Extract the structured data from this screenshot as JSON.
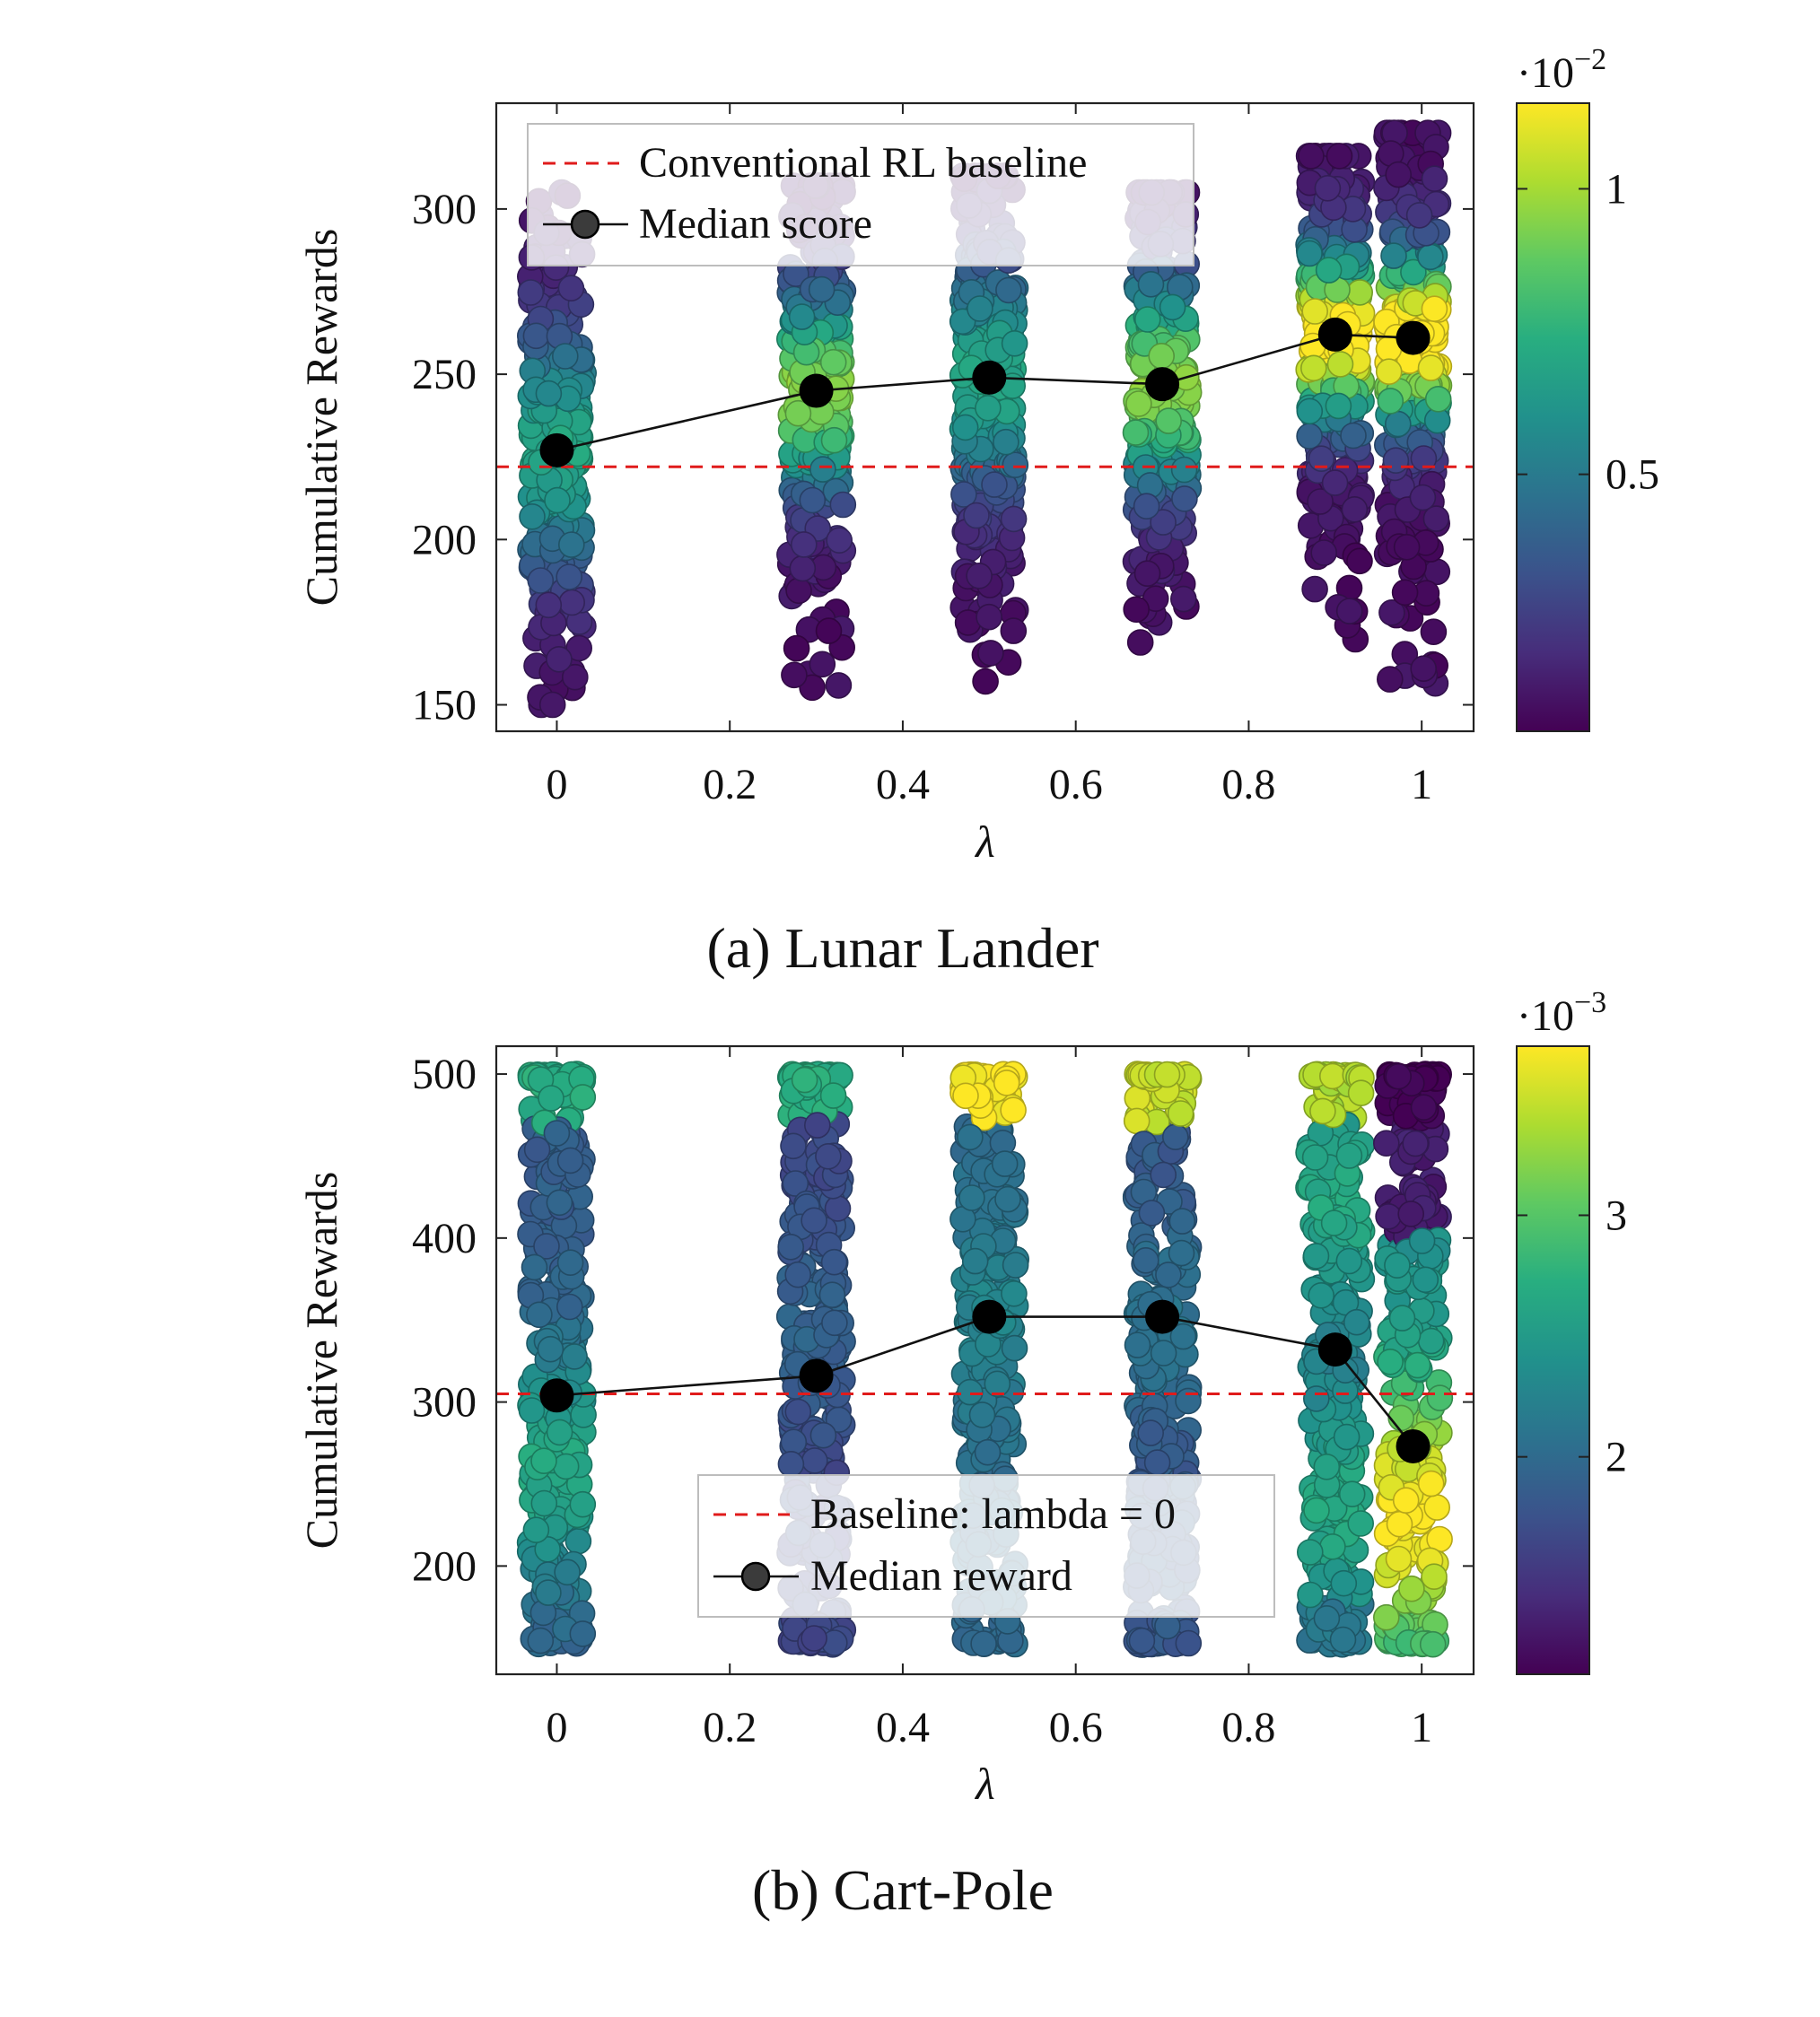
{
  "chart_data": [
    {
      "type": "scatter",
      "title": "",
      "caption": "(a) Lunar Lander",
      "xlabel": "λ",
      "ylabel": "Cumulative Rewards",
      "xlim": [
        -0.07,
        1.06
      ],
      "ylim": [
        142,
        332
      ],
      "xticks": [
        0,
        0.2,
        0.4,
        0.6,
        0.8,
        1
      ],
      "xtick_labels": [
        "0",
        "0.2",
        "0.4",
        "0.6",
        "0.8",
        "1"
      ],
      "yticks": [
        150,
        200,
        250,
        300
      ],
      "ytick_labels": [
        "150",
        "200",
        "250",
        "300"
      ],
      "grid": false,
      "legend_position": "top-left",
      "legend": {
        "baseline_label": "Conventional RL baseline",
        "median_label": "Median score"
      },
      "baseline": {
        "y": 222,
        "color": "#e01b1b",
        "style": "dashed"
      },
      "median": {
        "x": [
          0,
          0.3,
          0.5,
          0.7,
          0.9,
          0.99
        ],
        "y": [
          227,
          245,
          249,
          247,
          262,
          261
        ]
      },
      "groups": [
        {
          "x": 0,
          "y_min": 150,
          "y_max": 305
        },
        {
          "x": 0.3,
          "y_min": 152,
          "y_max": 307
        },
        {
          "x": 0.5,
          "y_min": 151,
          "y_max": 310
        },
        {
          "x": 0.7,
          "y_min": 160,
          "y_max": 305
        },
        {
          "x": 0.9,
          "y_min": 162,
          "y_max": 316
        },
        {
          "x": 0.99,
          "y_min": 153,
          "y_max": 323
        }
      ],
      "colorbar": {
        "colormap": "viridis",
        "range": [
          0.0005,
          0.0115
        ],
        "ticks": [
          0.005,
          0.01
        ],
        "tick_labels": [
          "0.5",
          "1"
        ],
        "multiplier_base": "·10",
        "multiplier_exp": "−2"
      }
    },
    {
      "type": "scatter",
      "title": "",
      "caption": "(b) Cart-Pole",
      "xlabel": "λ",
      "ylabel": "Cumulative Rewards",
      "xlim": [
        -0.07,
        1.06
      ],
      "ylim": [
        134,
        517
      ],
      "xticks": [
        0,
        0.2,
        0.4,
        0.6,
        0.8,
        1
      ],
      "xtick_labels": [
        "0",
        "0.2",
        "0.4",
        "0.6",
        "0.8",
        "1"
      ],
      "yticks": [
        200,
        300,
        400,
        500
      ],
      "ytick_labels": [
        "200",
        "300",
        "400",
        "500"
      ],
      "grid": false,
      "legend_position": "bottom-center",
      "legend": {
        "baseline_label": "Baseline: lambda = 0",
        "median_label": "Median reward"
      },
      "baseline": {
        "y": 305,
        "color": "#e01b1b",
        "style": "dashed"
      },
      "median": {
        "x": [
          0,
          0.3,
          0.5,
          0.7,
          0.9,
          0.99
        ],
        "y": [
          304,
          316,
          352,
          352,
          332,
          273
        ]
      },
      "groups": [
        {
          "x": 0,
          "y_min": 152,
          "y_max": 500
        },
        {
          "x": 0.3,
          "y_min": 152,
          "y_max": 500
        },
        {
          "x": 0.5,
          "y_min": 152,
          "y_max": 500
        },
        {
          "x": 0.7,
          "y_min": 152,
          "y_max": 500
        },
        {
          "x": 0.9,
          "y_min": 152,
          "y_max": 500
        },
        {
          "x": 0.99,
          "y_min": 152,
          "y_max": 500
        }
      ],
      "colorbar": {
        "colormap": "viridis",
        "range": [
          0.0011,
          0.0037
        ],
        "ticks": [
          0.002,
          0.003
        ],
        "tick_labels": [
          "2",
          "3"
        ],
        "multiplier_base": "·10",
        "multiplier_exp": "−3"
      }
    }
  ]
}
